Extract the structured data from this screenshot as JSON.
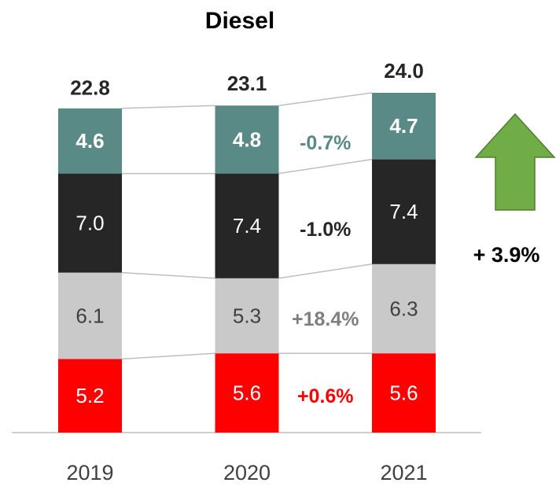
{
  "chart_data": {
    "type": "stacked_bar",
    "title": "Diesel",
    "categories": [
      "2019",
      "2020",
      "2021"
    ],
    "series": [
      {
        "color": "#ff0000",
        "values": [
          5.2,
          5.6,
          5.6
        ],
        "label_color": "#ffffff",
        "label_bold": false,
        "change_label": "+0.6%",
        "change_color": "#ff0000"
      },
      {
        "color": "#c9c9c9",
        "values": [
          6.1,
          5.3,
          6.3
        ],
        "label_color": "#404040",
        "label_bold": false,
        "change_label": "+18.4%",
        "change_color": "#7f7f7f"
      },
      {
        "color": "#262626",
        "values": [
          7.0,
          7.4,
          7.4
        ],
        "value_labels": [
          "7.0",
          "7.4",
          "7.4"
        ],
        "label_color": "#ffffff",
        "label_bold": false,
        "change_label": "-1.0%",
        "change_color": "#262626"
      },
      {
        "color": "#5a8a85",
        "values": [
          4.6,
          4.8,
          4.7
        ],
        "label_color": "#ffffff",
        "label_bold": true,
        "change_label": "-0.7%",
        "change_color": "#5a8a85"
      }
    ],
    "totals": {
      "values": [
        22.8,
        23.1,
        24.0
      ],
      "value_labels": [
        "22.8",
        "23.1",
        "24.0"
      ]
    },
    "annotation": "+ 3.9%"
  }
}
